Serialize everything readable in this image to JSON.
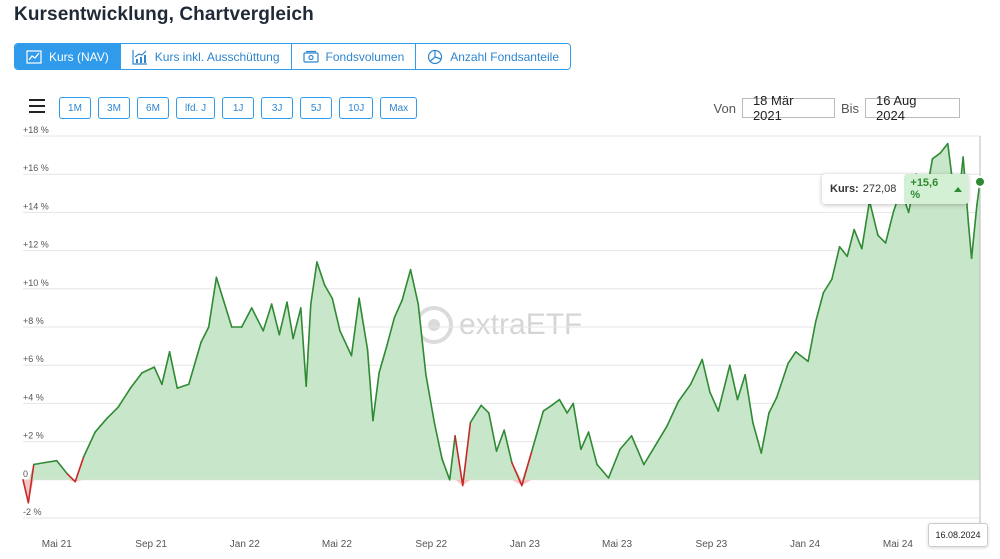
{
  "page": {
    "title": "Kursentwicklung, Chartvergleich"
  },
  "tabs": [
    {
      "label": "Kurs (NAV)",
      "icon": "line-chart-icon",
      "active": true
    },
    {
      "label": "Kurs inkl. Ausschüttung",
      "icon": "bar-line-chart-icon",
      "active": false
    },
    {
      "label": "Fondsvolumen",
      "icon": "banknote-icon",
      "active": false
    },
    {
      "label": "Anzahl Fondsanteile",
      "icon": "pie-chart-icon",
      "active": false
    }
  ],
  "ranges": [
    "1M",
    "3M",
    "6M",
    "lfd. J",
    "1J",
    "3J",
    "5J",
    "10J",
    "Max"
  ],
  "date_range": {
    "from_label": "Von",
    "from_value": "18 Mär 2021",
    "to_label": "Bis",
    "to_value": "16 Aug 2024"
  },
  "tooltip": {
    "label": "Kurs:",
    "value": "272,08",
    "change": "+15,6 %"
  },
  "current_date_flag": "16.08.2024",
  "watermark": "extraETF",
  "colors": {
    "accent": "#2f9bea",
    "line_up": "#2e8a33",
    "fill_up": "#c8e6c9",
    "line_down": "#c62828",
    "fill_down": "#f5c6c6"
  },
  "chart_data": {
    "type": "area",
    "y_ticks": [
      "-2 %",
      "0",
      "+2 %",
      "+4 %",
      "+6 %",
      "+8 %",
      "+10 %",
      "+12 %",
      "+14 %",
      "+16 %",
      "+18 %"
    ],
    "ylim": [
      -2,
      18
    ],
    "x_labels": [
      "Mai 21",
      "Sep 21",
      "Jan 22",
      "Mai 22",
      "Sep 22",
      "Jan 23",
      "Mai 23",
      "Sep 23",
      "Jan 24",
      "Mai 24"
    ],
    "x_label_dates": [
      "2021-05-01",
      "2021-09-01",
      "2022-01-01",
      "2022-05-01",
      "2022-09-01",
      "2023-01-01",
      "2023-05-01",
      "2023-09-01",
      "2024-01-01",
      "2024-05-01"
    ],
    "x_range": [
      "2021-03-18",
      "2024-08-16"
    ],
    "series": [
      {
        "points": [
          [
            "2021-03-18",
            0.0
          ],
          [
            "2021-03-25",
            -1.2
          ],
          [
            "2021-04-01",
            0.8
          ],
          [
            "2021-04-15",
            0.9
          ],
          [
            "2021-05-01",
            1.0
          ],
          [
            "2021-05-15",
            0.3
          ],
          [
            "2021-05-25",
            -0.1
          ],
          [
            "2021-06-05",
            1.2
          ],
          [
            "2021-06-20",
            2.5
          ],
          [
            "2021-07-05",
            3.2
          ],
          [
            "2021-07-20",
            3.8
          ],
          [
            "2021-08-05",
            4.8
          ],
          [
            "2021-08-20",
            5.6
          ],
          [
            "2021-09-05",
            5.9
          ],
          [
            "2021-09-15",
            5.0
          ],
          [
            "2021-09-25",
            6.7
          ],
          [
            "2021-10-05",
            4.8
          ],
          [
            "2021-10-20",
            5.0
          ],
          [
            "2021-11-05",
            7.2
          ],
          [
            "2021-11-15",
            8.0
          ],
          [
            "2021-11-25",
            10.6
          ],
          [
            "2021-12-05",
            9.3
          ],
          [
            "2021-12-15",
            8.0
          ],
          [
            "2021-12-28",
            8.0
          ],
          [
            "2022-01-10",
            9.0
          ],
          [
            "2022-01-25",
            7.8
          ],
          [
            "2022-02-05",
            9.2
          ],
          [
            "2022-02-15",
            7.6
          ],
          [
            "2022-02-25",
            9.3
          ],
          [
            "2022-03-05",
            7.4
          ],
          [
            "2022-03-15",
            9.0
          ],
          [
            "2022-03-22",
            4.9
          ],
          [
            "2022-03-28",
            9.2
          ],
          [
            "2022-04-05",
            11.4
          ],
          [
            "2022-04-15",
            10.2
          ],
          [
            "2022-04-25",
            9.5
          ],
          [
            "2022-05-05",
            7.8
          ],
          [
            "2022-05-20",
            6.5
          ],
          [
            "2022-05-30",
            9.5
          ],
          [
            "2022-06-10",
            6.8
          ],
          [
            "2022-06-17",
            3.1
          ],
          [
            "2022-06-25",
            5.6
          ],
          [
            "2022-07-05",
            7.0
          ],
          [
            "2022-07-15",
            8.5
          ],
          [
            "2022-07-25",
            9.4
          ],
          [
            "2022-08-05",
            11.0
          ],
          [
            "2022-08-15",
            9.2
          ],
          [
            "2022-08-25",
            5.5
          ],
          [
            "2022-09-05",
            3.0
          ],
          [
            "2022-09-15",
            1.1
          ],
          [
            "2022-09-25",
            0.0
          ],
          [
            "2022-10-02",
            2.3
          ],
          [
            "2022-10-12",
            -0.3
          ],
          [
            "2022-10-22",
            3.0
          ],
          [
            "2022-11-05",
            3.9
          ],
          [
            "2022-11-15",
            3.5
          ],
          [
            "2022-11-25",
            1.5
          ],
          [
            "2022-12-05",
            2.6
          ],
          [
            "2022-12-15",
            0.9
          ],
          [
            "2022-12-28",
            -0.3
          ],
          [
            "2023-01-10",
            1.5
          ],
          [
            "2023-01-25",
            3.6
          ],
          [
            "2023-02-05",
            3.9
          ],
          [
            "2023-02-15",
            4.2
          ],
          [
            "2023-02-25",
            3.5
          ],
          [
            "2023-03-05",
            4.0
          ],
          [
            "2023-03-15",
            1.6
          ],
          [
            "2023-03-25",
            2.5
          ],
          [
            "2023-04-05",
            0.8
          ],
          [
            "2023-04-20",
            0.1
          ],
          [
            "2023-05-05",
            1.6
          ],
          [
            "2023-05-20",
            2.3
          ],
          [
            "2023-06-05",
            0.8
          ],
          [
            "2023-06-20",
            1.8
          ],
          [
            "2023-07-05",
            2.8
          ],
          [
            "2023-07-20",
            4.1
          ],
          [
            "2023-08-05",
            5.0
          ],
          [
            "2023-08-20",
            6.3
          ],
          [
            "2023-08-30",
            4.6
          ],
          [
            "2023-09-10",
            3.6
          ],
          [
            "2023-09-25",
            6.0
          ],
          [
            "2023-10-05",
            4.2
          ],
          [
            "2023-10-15",
            5.5
          ],
          [
            "2023-10-25",
            3.0
          ],
          [
            "2023-11-05",
            1.4
          ],
          [
            "2023-11-15",
            3.5
          ],
          [
            "2023-11-25",
            4.3
          ],
          [
            "2023-12-10",
            6.1
          ],
          [
            "2023-12-20",
            6.7
          ],
          [
            "2024-01-05",
            6.2
          ],
          [
            "2024-01-15",
            8.3
          ],
          [
            "2024-01-25",
            9.8
          ],
          [
            "2024-02-05",
            10.5
          ],
          [
            "2024-02-15",
            12.2
          ],
          [
            "2024-02-25",
            11.7
          ],
          [
            "2024-03-05",
            13.1
          ],
          [
            "2024-03-15",
            12.1
          ],
          [
            "2024-03-25",
            14.6
          ],
          [
            "2024-04-05",
            12.8
          ],
          [
            "2024-04-15",
            12.4
          ],
          [
            "2024-04-25",
            14.0
          ],
          [
            "2024-05-05",
            15.2
          ],
          [
            "2024-05-15",
            14.0
          ],
          [
            "2024-05-25",
            16.0
          ],
          [
            "2024-06-05",
            14.5
          ],
          [
            "2024-06-15",
            16.8
          ],
          [
            "2024-06-25",
            17.1
          ],
          [
            "2024-07-05",
            17.6
          ],
          [
            "2024-07-10",
            16.0
          ],
          [
            "2024-07-20",
            14.9
          ],
          [
            "2024-07-25",
            16.9
          ],
          [
            "2024-08-01",
            13.4
          ],
          [
            "2024-08-05",
            11.6
          ],
          [
            "2024-08-12",
            14.4
          ],
          [
            "2024-08-16",
            15.6
          ]
        ]
      }
    ]
  }
}
